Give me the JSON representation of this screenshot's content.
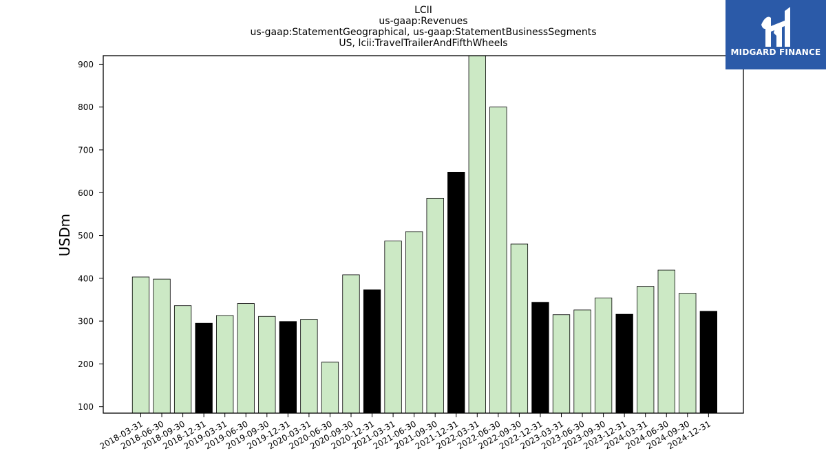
{
  "titles": [
    "LCII",
    "us-gaap:Revenues",
    "us-gaap:StatementGeographical, us-gaap:StatementBusinessSegments",
    "US, lcii:TravelTrailerAndFifthWheels"
  ],
  "logo": {
    "text": "MIDGARD FINANCE",
    "color": "#2b5aa8"
  },
  "colors": {
    "quarter_bar": "#cce9c5",
    "year_end_bar": "#000000",
    "bar_edge": "#000000"
  },
  "chart_data": {
    "type": "bar",
    "title": "LCII",
    "ylabel": "USDm",
    "xlabel": "",
    "ylim": [
      85,
      920
    ],
    "yticks": [
      100,
      200,
      300,
      400,
      500,
      600,
      700,
      800,
      900
    ],
    "grid": false,
    "categories": [
      "2018-03-31",
      "2018-06-30",
      "2018-09-30",
      "2018-12-31",
      "2019-03-31",
      "2019-06-30",
      "2019-09-30",
      "2019-12-31",
      "2020-03-31",
      "2020-06-30",
      "2020-09-30",
      "2020-12-31",
      "2021-03-31",
      "2021-06-30",
      "2021-09-30",
      "2021-12-31",
      "2022-03-31",
      "2022-06-30",
      "2022-09-30",
      "2022-12-31",
      "2023-03-31",
      "2023-06-30",
      "2023-09-30",
      "2023-12-31",
      "2024-03-31",
      "2024-06-30",
      "2024-09-30",
      "2024-12-31"
    ],
    "values": [
      403,
      398,
      336,
      295,
      313,
      341,
      311,
      299,
      304,
      204,
      408,
      373,
      487,
      509,
      587,
      648,
      925,
      800,
      480,
      344,
      315,
      326,
      354,
      316,
      381,
      419,
      365,
      323
    ],
    "year_end": [
      false,
      false,
      false,
      true,
      false,
      false,
      false,
      true,
      false,
      false,
      false,
      true,
      false,
      false,
      false,
      true,
      false,
      false,
      false,
      true,
      false,
      false,
      false,
      true,
      false,
      false,
      false,
      true
    ]
  }
}
